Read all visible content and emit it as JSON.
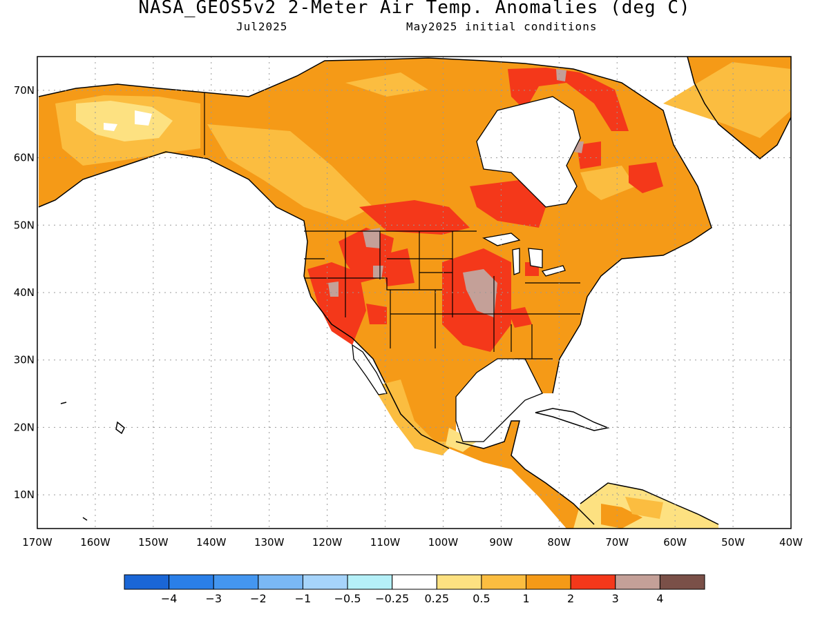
{
  "title": "NASA_GEOS5v2 2-Meter Air Temp. Anomalies (deg C)",
  "subtitle_left": "Jul2025",
  "subtitle_right": "May2025 initial conditions",
  "map": {
    "lon_range": [
      -170,
      -40
    ],
    "lat_range": [
      5,
      75
    ],
    "lat_ticks": [
      "10N",
      "20N",
      "30N",
      "40N",
      "50N",
      "60N",
      "70N"
    ],
    "lon_ticks": [
      "170W",
      "160W",
      "150W",
      "140W",
      "130W",
      "120W",
      "110W",
      "100W",
      "90W",
      "80W",
      "70W",
      "60W",
      "50W",
      "40W"
    ],
    "grid": true,
    "land_outline_color": "#000000",
    "ocean_color": "#ffffff"
  },
  "colorbar": {
    "colors": [
      "#1a66d6",
      "#2a7fe8",
      "#4496f0",
      "#7ab8f5",
      "#a6d4fb",
      "#b5f0f8",
      "#ffffff",
      "#fde181",
      "#fbbd40",
      "#f59a17",
      "#f4381a",
      "#c4a098",
      "#7a5048"
    ],
    "labels": [
      "-4",
      "-3",
      "-2",
      "-1",
      "-0.5",
      "-0.25",
      "0.25",
      "0.5",
      "1",
      "2",
      "3",
      "4"
    ]
  }
}
